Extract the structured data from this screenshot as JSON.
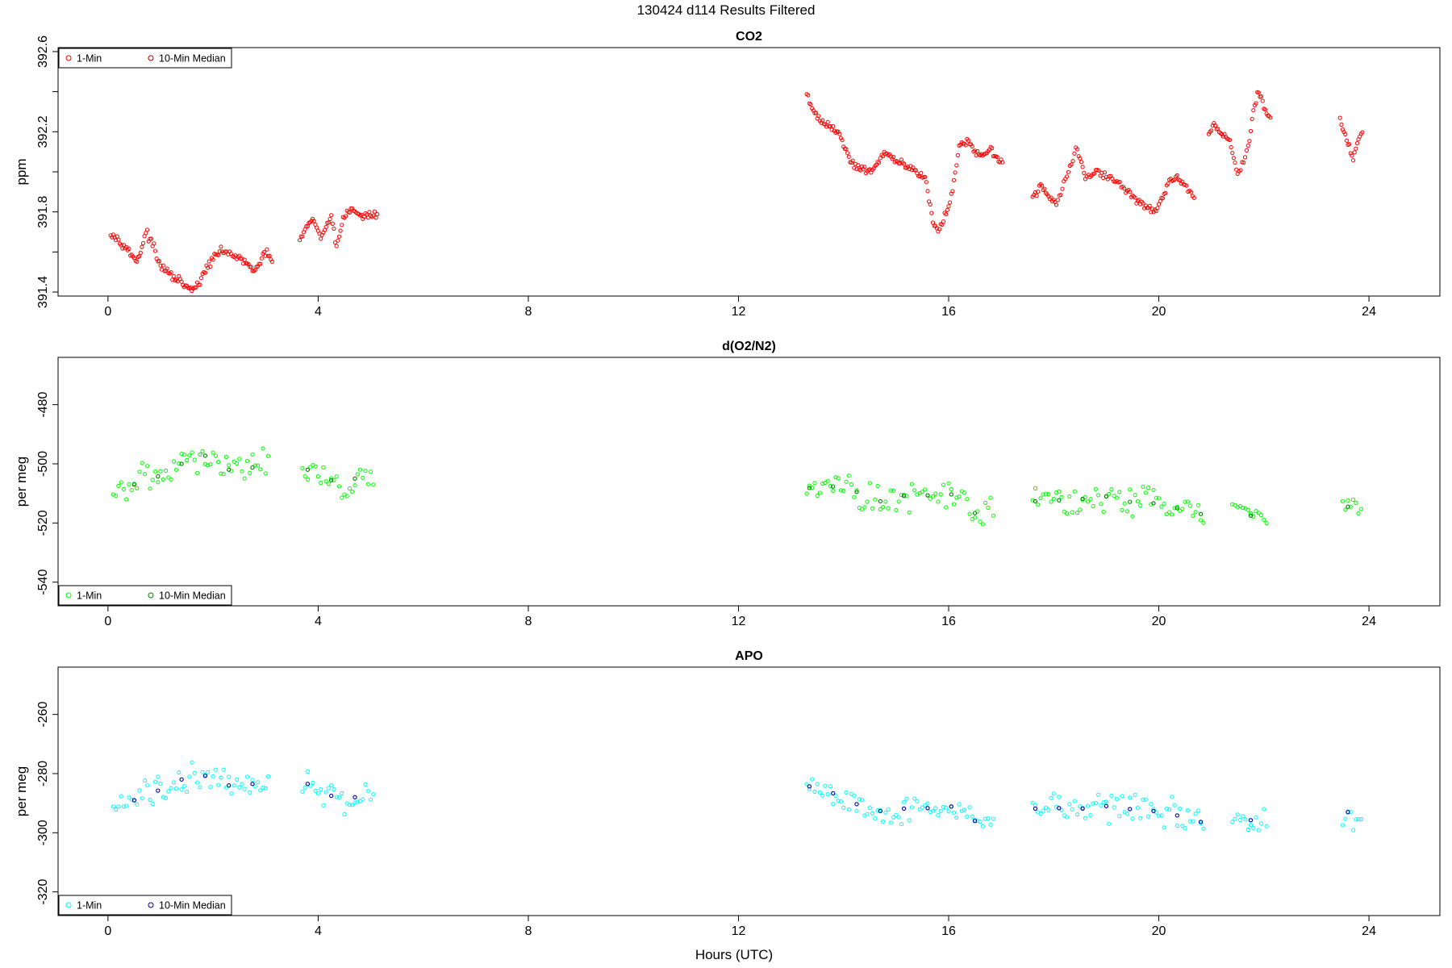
{
  "figure_title": "130424   d114   Results Filtered",
  "xlabel": "Hours (UTC)",
  "legend": {
    "one_min": "1-Min",
    "median": "10-Min Median"
  },
  "chart_data": [
    {
      "type": "scatter",
      "title": "CO2",
      "ylabel": "ppm",
      "xlim": [
        -0.95,
        25.35
      ],
      "ylim": [
        391.38,
        392.62
      ],
      "xticks": [
        0,
        4,
        8,
        12,
        16,
        20,
        24
      ],
      "yticks": [
        391.4,
        391.8,
        392.2,
        392.6
      ],
      "yminor": [
        391.6,
        392.0,
        392.4
      ],
      "legend_position": "top-left",
      "colors": {
        "one_min": "#ff0000",
        "median": "#b00000"
      },
      "series": [
        {
          "name": "1-Min",
          "segments": [
            {
              "x": [
                0.05,
                0.2,
                0.3,
                0.45,
                0.55,
                0.62,
                0.72,
                0.85,
                0.95,
                1.05,
                1.2,
                1.35,
                1.5,
                1.62,
                1.75,
                1.9,
                2.0,
                2.2,
                2.4,
                2.55,
                2.75,
                2.9,
                3.0,
                3.15
              ],
              "y": [
                391.7,
                391.66,
                391.64,
                391.58,
                391.56,
                391.6,
                391.7,
                391.64,
                391.55,
                391.52,
                391.48,
                391.46,
                391.42,
                391.41,
                391.45,
                391.53,
                391.57,
                391.61,
                391.58,
                391.56,
                391.51,
                391.54,
                391.6,
                391.55
              ]
            },
            {
              "x": [
                3.65,
                3.8,
                3.92,
                4.05,
                4.15,
                4.25,
                4.35,
                4.45,
                4.55,
                4.7,
                4.85,
                5.0,
                5.15
              ],
              "y": [
                391.66,
                391.73,
                391.76,
                391.66,
                391.73,
                391.78,
                391.62,
                391.75,
                391.8,
                391.81,
                391.77,
                391.79,
                391.78
              ]
            },
            {
              "x": [
                13.3,
                13.45,
                13.6,
                13.75,
                13.9,
                14.05,
                14.2,
                14.35,
                14.5,
                14.65,
                14.8,
                14.95,
                15.1,
                15.25,
                15.4,
                15.55,
                15.7,
                15.8,
                15.9,
                16.0,
                16.1,
                16.2,
                16.35,
                16.5,
                16.65,
                16.8,
                16.95,
                17.05
              ],
              "y": [
                392.38,
                392.3,
                392.24,
                392.23,
                392.2,
                392.1,
                392.03,
                392.02,
                392.0,
                392.05,
                392.09,
                392.06,
                392.04,
                392.02,
                392.0,
                391.98,
                391.75,
                391.7,
                391.76,
                391.82,
                391.95,
                392.12,
                392.15,
                392.1,
                392.08,
                392.12,
                392.06,
                392.04
              ]
            },
            {
              "x": [
                17.6,
                17.75,
                17.9,
                18.05,
                18.25,
                18.45,
                18.6,
                18.8,
                19.0,
                19.2,
                19.4,
                19.6,
                19.75,
                19.9,
                20.05,
                20.2,
                20.35,
                20.5,
                20.7
              ],
              "y": [
                391.86,
                391.94,
                391.88,
                391.84,
                391.98,
                392.12,
                391.97,
                392.0,
                391.98,
                391.95,
                391.9,
                391.86,
                391.82,
                391.8,
                391.86,
                391.95,
                391.96,
                391.93,
                391.87
              ]
            },
            {
              "x": [
                20.95,
                21.05,
                21.15,
                21.35,
                21.5,
                21.7,
                21.8,
                21.9,
                22.0,
                22.15
              ],
              "y": [
                392.18,
                392.24,
                392.2,
                392.16,
                391.98,
                392.12,
                392.3,
                392.4,
                392.32,
                392.26
              ]
            },
            {
              "x": [
                23.45,
                23.55,
                23.7,
                23.8,
                23.9
              ],
              "y": [
                392.26,
                392.18,
                392.06,
                392.16,
                392.2
              ]
            }
          ]
        },
        {
          "name": "10-Min Median",
          "segments": []
        }
      ]
    },
    {
      "type": "scatter",
      "title": "d(O2/N2)",
      "ylabel": "per meg",
      "xlim": [
        -0.95,
        25.35
      ],
      "ylim": [
        -548,
        -464
      ],
      "xticks": [
        0,
        4,
        8,
        12,
        16,
        20,
        24
      ],
      "yticks": [
        -540,
        -520,
        -500,
        -480
      ],
      "legend_position": "bottom-left",
      "colors": {
        "one_min": "#00ff00",
        "median": "#008000"
      },
      "series": [
        {
          "name": "1-Min",
          "segments": [
            {
              "x": [
                0.1,
                0.3,
                0.5,
                0.7,
                0.9,
                1.1,
                1.3,
                1.5,
                1.7,
                1.9,
                2.1,
                2.3,
                2.5,
                2.7,
                2.9,
                3.1
              ],
              "y": [
                -511,
                -509,
                -507,
                -504,
                -505,
                -502,
                -501,
                -499,
                -498,
                -497,
                -500,
                -502,
                -501,
                -502,
                -499,
                -498
              ]
            },
            {
              "x": [
                3.7,
                3.9,
                4.1,
                4.3,
                4.5,
                4.7,
                4.9,
                5.1
              ],
              "y": [
                -503,
                -501,
                -504,
                -506,
                -508,
                -505,
                -505,
                -503
              ]
            },
            {
              "x": [
                13.3,
                13.6,
                13.9,
                14.2,
                14.5,
                14.8,
                15.1,
                15.4,
                15.7,
                16.0,
                16.3,
                16.6,
                16.9
              ],
              "y": [
                -508,
                -509,
                -507,
                -509,
                -512,
                -513,
                -511,
                -510,
                -511,
                -510,
                -512,
                -519,
                -516
              ]
            },
            {
              "x": [
                17.6,
                17.9,
                18.2,
                18.5,
                18.8,
                19.1,
                19.4,
                19.7,
                20.0,
                20.3,
                20.6,
                20.9
              ],
              "y": [
                -513,
                -511,
                -513,
                -512,
                -511,
                -511,
                -513,
                -512,
                -514,
                -515,
                -515,
                -518
              ]
            },
            {
              "x": [
                21.4,
                21.6,
                21.8,
                22.0,
                22.1
              ],
              "y": [
                -514,
                -516,
                -518,
                -520,
                -521
              ]
            },
            {
              "x": [
                23.5,
                23.7,
                23.9
              ],
              "y": [
                -514,
                -515,
                -516
              ]
            }
          ]
        },
        {
          "name": "10-Min Median",
          "segments": []
        }
      ]
    },
    {
      "type": "scatter",
      "title": "APO",
      "ylabel": "per meg",
      "xlim": [
        -0.95,
        25.35
      ],
      "ylim": [
        -328,
        -244
      ],
      "xticks": [
        0,
        4,
        8,
        12,
        16,
        20,
        24
      ],
      "yticks": [
        -320,
        -300,
        -280,
        -260
      ],
      "legend_position": "bottom-left",
      "colors": {
        "one_min": "#00ffff",
        "median": "#0000a0"
      },
      "series": [
        {
          "name": "1-Min",
          "segments": [
            {
              "x": [
                0.1,
                0.3,
                0.5,
                0.7,
                0.9,
                1.1,
                1.3,
                1.5,
                1.7,
                1.9,
                2.1,
                2.3,
                2.5,
                2.7,
                2.9,
                3.1
              ],
              "y": [
                -292,
                -291,
                -289,
                -287,
                -286,
                -285,
                -283,
                -281,
                -280,
                -281,
                -282,
                -284,
                -284,
                -284,
                -282,
                -282
              ]
            },
            {
              "x": [
                3.7,
                3.9,
                4.1,
                4.3,
                4.5,
                4.7,
                4.9,
                5.1
              ],
              "y": [
                -284,
                -283,
                -286,
                -288,
                -290,
                -288,
                -287,
                -285
              ]
            },
            {
              "x": [
                13.3,
                13.6,
                13.9,
                14.2,
                14.5,
                14.8,
                15.1,
                15.4,
                15.7,
                16.0,
                16.3,
                16.6,
                16.9
              ],
              "y": [
                -284,
                -286,
                -287,
                -290,
                -292,
                -293,
                -292,
                -291,
                -292,
                -291,
                -292,
                -298,
                -296
              ]
            },
            {
              "x": [
                17.6,
                17.9,
                18.2,
                18.5,
                18.8,
                19.1,
                19.4,
                19.7,
                20.0,
                20.3,
                20.6,
                20.9
              ],
              "y": [
                -292,
                -291,
                -292,
                -292,
                -291,
                -291,
                -292,
                -292,
                -293,
                -294,
                -295,
                -297
              ]
            },
            {
              "x": [
                21.4,
                21.6,
                21.8,
                22.0,
                22.1
              ],
              "y": [
                -293,
                -295,
                -296,
                -297,
                -298
              ]
            },
            {
              "x": [
                23.5,
                23.7,
                23.9
              ],
              "y": [
                -292,
                -294,
                -295
              ]
            }
          ]
        },
        {
          "name": "10-Min Median",
          "segments": []
        }
      ]
    }
  ]
}
